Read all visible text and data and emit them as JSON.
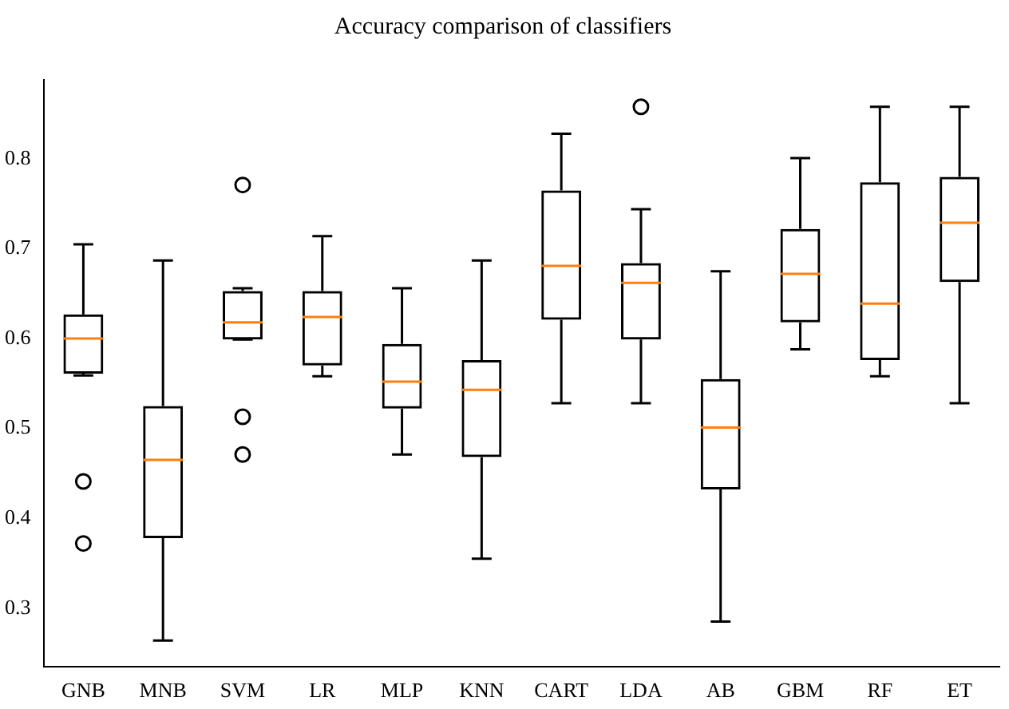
{
  "chart_data": {
    "type": "box",
    "title": "Accuracy comparison of classifiers",
    "categories": [
      "GNB",
      "MNB",
      "SVM",
      "LR",
      "MLP",
      "KNN",
      "CART",
      "LDA",
      "AB",
      "GBM",
      "RF",
      "ET"
    ],
    "boxes": [
      {
        "low": 0.559,
        "q1": 0.561,
        "median": 0.6,
        "q3": 0.627,
        "high": 0.705,
        "outliers": [
          0.441,
          0.372
        ]
      },
      {
        "low": 0.264,
        "q1": 0.378,
        "median": 0.465,
        "q3": 0.525,
        "high": 0.687
      },
      {
        "low": 0.599,
        "q1": 0.599,
        "median": 0.618,
        "q3": 0.653,
        "high": 0.656,
        "outliers": [
          0.771,
          0.513,
          0.471
        ]
      },
      {
        "low": 0.558,
        "q1": 0.57,
        "median": 0.624,
        "q3": 0.653,
        "high": 0.714
      },
      {
        "low": 0.471,
        "q1": 0.522,
        "median": 0.552,
        "q3": 0.594,
        "high": 0.656
      },
      {
        "low": 0.355,
        "q1": 0.468,
        "median": 0.543,
        "q3": 0.576,
        "high": 0.687
      },
      {
        "low": 0.528,
        "q1": 0.621,
        "median": 0.681,
        "q3": 0.765,
        "high": 0.828
      },
      {
        "low": 0.528,
        "q1": 0.599,
        "median": 0.662,
        "q3": 0.684,
        "high": 0.744,
        "outliers": [
          0.858
        ]
      },
      {
        "low": 0.285,
        "q1": 0.432,
        "median": 0.501,
        "q3": 0.555,
        "high": 0.675
      },
      {
        "low": 0.588,
        "q1": 0.618,
        "median": 0.672,
        "q3": 0.722,
        "high": 0.801
      },
      {
        "low": 0.558,
        "q1": 0.576,
        "median": 0.639,
        "q3": 0.774,
        "high": 0.858
      },
      {
        "low": 0.528,
        "q1": 0.663,
        "median": 0.729,
        "q3": 0.78,
        "high": 0.858
      }
    ],
    "color": "#000000",
    "ylim": [
      0.235,
      0.888
    ],
    "yticks": [
      0.3,
      0.4,
      0.5,
      0.6,
      0.7,
      0.8
    ],
    "grid": false,
    "legend": false
  }
}
